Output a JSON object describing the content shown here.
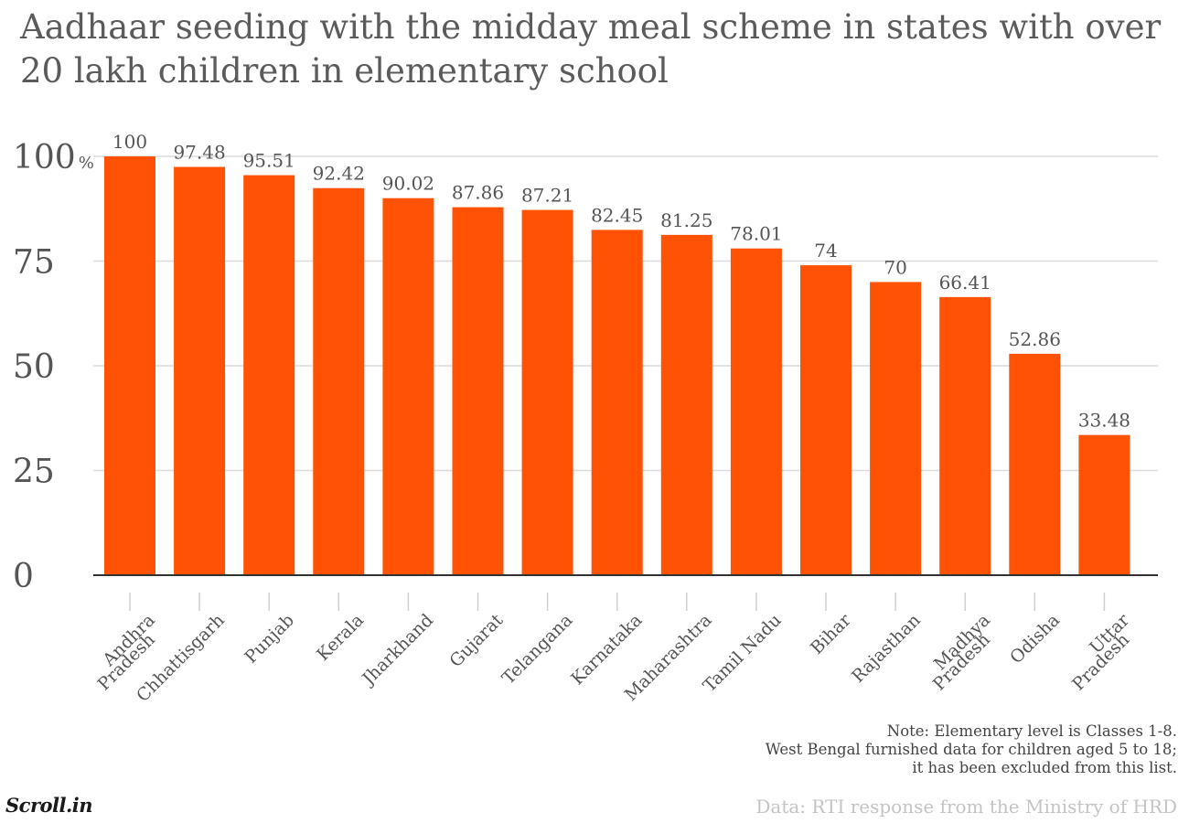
{
  "chart_data": {
    "type": "bar",
    "title": "Aadhaar seeding with the midday meal scheme in states with over 20 lakh children in elementary school",
    "categories": [
      [
        "Andhra",
        "Pradesh"
      ],
      [
        "Chhattisgarh"
      ],
      [
        "Punjab"
      ],
      [
        "Kerala"
      ],
      [
        "Jharkhand"
      ],
      [
        "Gujarat"
      ],
      [
        "Telangana"
      ],
      [
        "Karnataka"
      ],
      [
        "Maharashtra"
      ],
      [
        "Tamil Nadu"
      ],
      [
        "Bihar"
      ],
      [
        "Rajasthan"
      ],
      [
        "Madhya",
        "Pradesh"
      ],
      [
        "Odisha"
      ],
      [
        "Uttar",
        "Pradesh"
      ]
    ],
    "values": [
      100,
      97.48,
      95.51,
      92.42,
      90.02,
      87.86,
      87.21,
      82.45,
      81.25,
      78.01,
      74,
      70,
      66.41,
      52.86,
      33.48
    ],
    "data_labels": [
      "100",
      "97.48",
      "95.51",
      "92.42",
      "90.02",
      "87.86",
      "87.21",
      "82.45",
      "81.25",
      "78.01",
      "74",
      "70",
      "66.41",
      "52.86",
      "33.48"
    ],
    "ylim": [
      0,
      100
    ],
    "yticks": [
      0,
      25,
      50,
      75,
      100
    ],
    "ytick_labels": [
      "0",
      "25",
      "50",
      "75",
      "100"
    ],
    "ytick_suffix": "%",
    "grid": true,
    "bar_color": "#ff5205",
    "xlabel": "",
    "ylabel": ""
  },
  "note": [
    "Note: Elementary level is Classes 1-8.",
    "West Bengal furnished data for children aged 5 to 18;",
    "it has been excluded from this list."
  ],
  "source": "Data: RTI response from the Ministry of HRD",
  "logo": "Scroll.in"
}
